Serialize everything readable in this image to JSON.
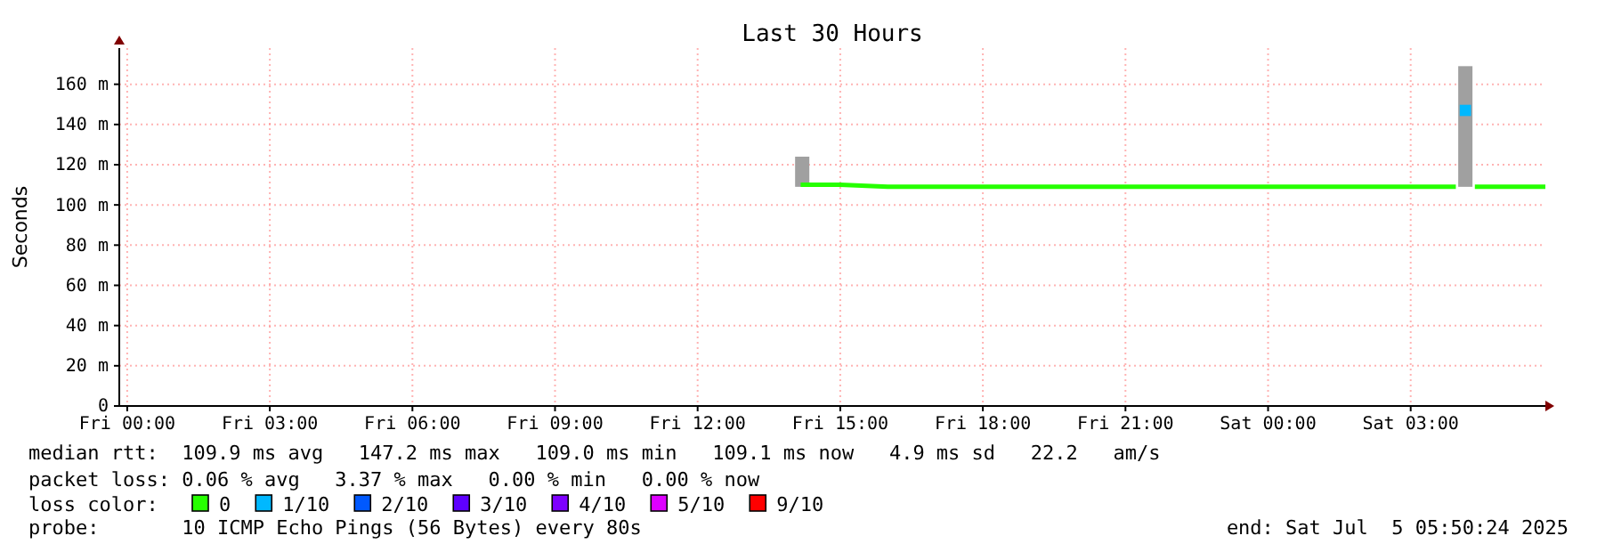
{
  "chart_data": {
    "type": "line",
    "title": "Last 30 Hours",
    "ylabel": "Seconds",
    "legend_title": "loss color:",
    "xlim": [
      "2025-07-03T23:50",
      "2025-07-05T05:50"
    ],
    "ylim": [
      0,
      178
    ],
    "xticks": [
      {
        "value": "2025-07-04T00:00",
        "label": "Fri 00:00"
      },
      {
        "value": "2025-07-04T03:00",
        "label": "Fri 03:00"
      },
      {
        "value": "2025-07-04T06:00",
        "label": "Fri 06:00"
      },
      {
        "value": "2025-07-04T09:00",
        "label": "Fri 09:00"
      },
      {
        "value": "2025-07-04T12:00",
        "label": "Fri 12:00"
      },
      {
        "value": "2025-07-04T15:00",
        "label": "Fri 15:00"
      },
      {
        "value": "2025-07-04T18:00",
        "label": "Fri 18:00"
      },
      {
        "value": "2025-07-04T21:00",
        "label": "Fri 21:00"
      },
      {
        "value": "2025-07-05T00:00",
        "label": "Sat 00:00"
      },
      {
        "value": "2025-07-05T03:00",
        "label": "Sat 03:00"
      }
    ],
    "yticks": [
      0,
      {
        "value": 20,
        "label": "20 m"
      },
      {
        "value": 40,
        "label": "40 m"
      },
      {
        "value": 60,
        "label": "60 m"
      },
      {
        "value": 80,
        "label": "80 m"
      },
      {
        "value": 100,
        "label": "100 m"
      },
      {
        "value": 120,
        "label": "120 m"
      },
      {
        "value": 140,
        "label": "140 m"
      },
      {
        "value": 160,
        "label": "160 m"
      }
    ],
    "grid": true,
    "legend": "bottom",
    "series": [
      {
        "type": "bar",
        "color": "#a0a0a0",
        "x": [
          "2025-07-04T14:12",
          "2025-07-05T04:09"
        ],
        "base": [
          109,
          109
        ],
        "values": [
          15,
          60
        ]
      },
      {
        "name": "0",
        "color": "#26ff00",
        "x": [
          "2025-07-04T14:10",
          "2025-07-04T15:00",
          "2025-07-04T16:00",
          "2025-07-04T17:00",
          "2025-07-04T18:00",
          "2025-07-04T19:00",
          "2025-07-04T20:00",
          "2025-07-04T21:00",
          "2025-07-04T22:00",
          "2025-07-04T23:00",
          "2025-07-05T00:00",
          "2025-07-05T01:00",
          "2025-07-05T02:00",
          "2025-07-05T03:00",
          "2025-07-05T03:57",
          "2025-07-05T04:09",
          "2025-07-05T04:21",
          "2025-07-05T05:00",
          "2025-07-05T05:50"
        ],
        "values": [
          110,
          110,
          109,
          109,
          109,
          109,
          109,
          109,
          109,
          109,
          109,
          109,
          109,
          109,
          109,
          null,
          109,
          109,
          109
        ]
      },
      {
        "name": "1/10",
        "type": "scatter",
        "marker": "square",
        "color": "#00b8ff",
        "x": [
          "2025-07-05T04:09"
        ],
        "values": [
          147
        ]
      },
      {
        "name": "2/10",
        "type": "scatter",
        "color": "#0059ff"
      },
      {
        "name": "3/10",
        "type": "scatter",
        "color": "#5e00ff"
      },
      {
        "name": "4/10",
        "type": "scatter",
        "color": "#7e00ff"
      },
      {
        "name": "5/10",
        "type": "scatter",
        "color": "#dd00ff"
      },
      {
        "name": "9/10",
        "type": "scatter",
        "color": "#ff0000"
      }
    ],
    "annotations": [
      "median rtt:  109.9 ms avg   147.2 ms max   109.0 ms min   109.1 ms now   4.9 ms sd   22.2   am/s",
      "packet loss: 0.06 % avg   3.37 % max   0.00 % min   0.00 % now",
      "probe:       10 ICMP Echo Pings (56 Bytes) every 80s",
      "end: Sat Jul  5 05:50:24 2025"
    ]
  }
}
